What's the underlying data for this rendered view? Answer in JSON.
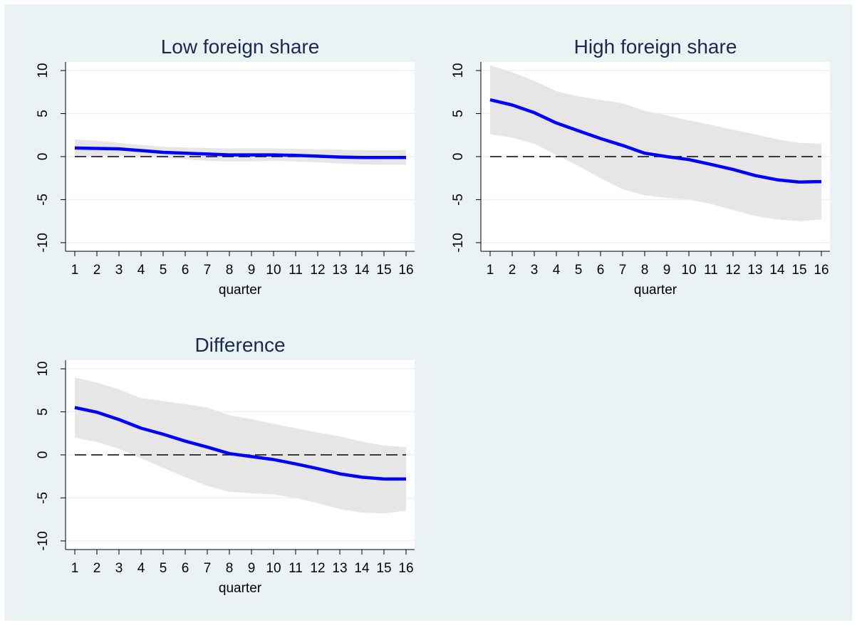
{
  "colors": {
    "outer_background": "#eaf2f3",
    "plot_background": "#ffffff",
    "band_fill": "#e6e6e6",
    "line": "#0000ff",
    "zero_line": "#000000",
    "grid": "#eaf2f3"
  },
  "chart_data": [
    {
      "type": "line",
      "title": "Low foreign share",
      "xlabel": "quarter",
      "ylabel": "",
      "x": [
        1,
        2,
        3,
        4,
        5,
        6,
        7,
        8,
        9,
        10,
        11,
        12,
        13,
        14,
        15,
        16
      ],
      "ylim": [
        -11,
        11
      ],
      "yticks": [
        10,
        5,
        0,
        -5,
        -10
      ],
      "ytick_labels": [
        "10",
        "5",
        "0",
        "-5",
        "-10"
      ],
      "reference_line": 0,
      "grid": true,
      "series": [
        {
          "role": "estimate",
          "values": [
            1.0,
            0.95,
            0.9,
            0.7,
            0.5,
            0.4,
            0.3,
            0.2,
            0.2,
            0.2,
            0.15,
            0.05,
            -0.05,
            -0.1,
            -0.1,
            -0.1
          ]
        },
        {
          "role": "upper",
          "values": [
            2.0,
            1.85,
            1.6,
            1.35,
            1.15,
            1.05,
            1.0,
            0.95,
            0.95,
            0.95,
            0.9,
            0.85,
            0.8,
            0.75,
            0.75,
            0.75
          ]
        },
        {
          "role": "lower",
          "values": [
            0.0,
            0.05,
            0.1,
            0.0,
            -0.15,
            -0.3,
            -0.5,
            -0.55,
            -0.55,
            -0.5,
            -0.55,
            -0.65,
            -0.8,
            -0.9,
            -0.95,
            -0.95
          ]
        }
      ]
    },
    {
      "type": "line",
      "title": "High foreign share",
      "xlabel": "quarter",
      "ylabel": "",
      "x": [
        1,
        2,
        3,
        4,
        5,
        6,
        7,
        8,
        9,
        10,
        11,
        12,
        13,
        14,
        15,
        16
      ],
      "ylim": [
        -11,
        11
      ],
      "yticks": [
        10,
        5,
        0,
        -5,
        -10
      ],
      "ytick_labels": [
        "10",
        "5",
        "0",
        "-5",
        "-10"
      ],
      "reference_line": 0,
      "grid": true,
      "series": [
        {
          "role": "estimate",
          "values": [
            6.6,
            6.0,
            5.1,
            3.9,
            3.0,
            2.1,
            1.3,
            0.4,
            0.0,
            -0.35,
            -0.9,
            -1.5,
            -2.2,
            -2.7,
            -2.95,
            -2.9
          ]
        },
        {
          "role": "upper",
          "values": [
            10.6,
            9.8,
            8.8,
            7.6,
            7.0,
            6.6,
            6.2,
            5.3,
            4.8,
            4.2,
            3.7,
            3.1,
            2.6,
            2.0,
            1.6,
            1.5
          ]
        },
        {
          "role": "lower",
          "values": [
            2.6,
            2.2,
            1.5,
            0.2,
            -1.1,
            -2.5,
            -3.8,
            -4.5,
            -4.8,
            -5.0,
            -5.5,
            -6.2,
            -6.9,
            -7.3,
            -7.5,
            -7.3
          ]
        }
      ]
    },
    {
      "type": "line",
      "title": "Difference",
      "xlabel": "quarter",
      "ylabel": "",
      "x": [
        1,
        2,
        3,
        4,
        5,
        6,
        7,
        8,
        9,
        10,
        11,
        12,
        13,
        14,
        15,
        16
      ],
      "ylim": [
        -11,
        11
      ],
      "yticks": [
        10,
        5,
        0,
        -5,
        -10
      ],
      "ytick_labels": [
        "10",
        "5",
        "0",
        "-5",
        "-10"
      ],
      "reference_line": 0,
      "grid": true,
      "series": [
        {
          "role": "estimate",
          "values": [
            5.5,
            4.95,
            4.1,
            3.1,
            2.4,
            1.6,
            0.9,
            0.15,
            -0.2,
            -0.55,
            -1.05,
            -1.6,
            -2.2,
            -2.6,
            -2.8,
            -2.8
          ]
        },
        {
          "role": "upper",
          "values": [
            9.0,
            8.4,
            7.6,
            6.6,
            6.25,
            5.9,
            5.5,
            4.6,
            4.15,
            3.6,
            3.1,
            2.6,
            2.15,
            1.55,
            1.1,
            0.9
          ]
        },
        {
          "role": "lower",
          "values": [
            2.0,
            1.5,
            0.7,
            -0.4,
            -1.5,
            -2.6,
            -3.6,
            -4.3,
            -4.45,
            -4.6,
            -5.0,
            -5.6,
            -6.3,
            -6.7,
            -6.8,
            -6.5
          ]
        }
      ]
    }
  ]
}
